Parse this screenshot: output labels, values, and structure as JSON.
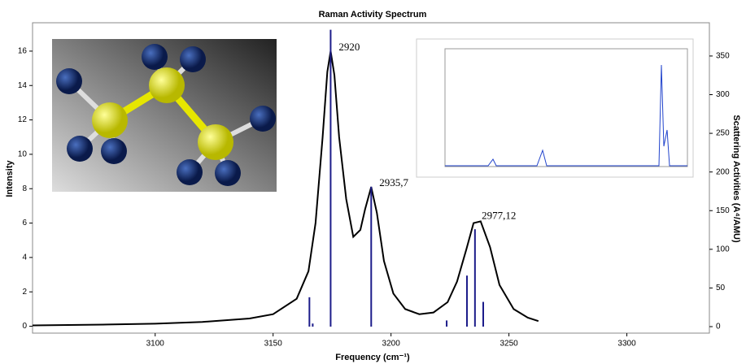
{
  "chart_data": {
    "type": "line",
    "title": "Raman Activity Spectrum",
    "x_label": "Frequency (cm⁻¹)",
    "y_label": "Intensity",
    "y2_label": "Scattering Activities (A⁴/AMU)",
    "xlim": [
      3048,
      3335
    ],
    "xticks": [
      3100,
      3150,
      3200,
      3250,
      3300
    ],
    "ylim": [
      -0.4,
      17.65
    ],
    "yticks": [
      0,
      2,
      4,
      6,
      8,
      10,
      12,
      14,
      16
    ],
    "y2lim": [
      -8.4,
      393
    ],
    "y2ticks": [
      0,
      50,
      100,
      150,
      200,
      250,
      300,
      350
    ],
    "series": [
      {
        "type": "line",
        "color": "#000000",
        "x": [
          3048,
          3080,
          3100,
          3120,
          3140,
          3150,
          3160,
          3165,
          3168,
          3171,
          3173,
          3174.4,
          3176,
          3178,
          3181,
          3184,
          3187,
          3189,
          3191.6,
          3194,
          3197,
          3201,
          3206,
          3212,
          3218,
          3224,
          3228,
          3232,
          3235,
          3238,
          3242,
          3246,
          3252,
          3258,
          3262.5
        ],
        "values": [
          0.05,
          0.1,
          0.15,
          0.25,
          0.45,
          0.7,
          1.6,
          3.2,
          6,
          11,
          14.8,
          16,
          14.6,
          11,
          7.4,
          5.2,
          5.6,
          6.8,
          8.1,
          6.6,
          3.8,
          1.9,
          1.0,
          0.7,
          0.8,
          1.4,
          2.6,
          4.5,
          6.0,
          6.1,
          4.6,
          2.4,
          1.0,
          0.5,
          0.3
        ]
      },
      {
        "type": "stick",
        "axis": "y2",
        "color": "#1c1c8a",
        "x": [
          3165.4,
          3166.8,
          3174.4,
          3191.6,
          3223.6,
          3232.2,
          3235.6,
          3239.1
        ],
        "values": [
          38,
          4,
          384,
          181,
          8,
          66,
          126,
          32
        ]
      }
    ],
    "annotations": [
      {
        "text": "2920",
        "x": 3174.4,
        "y": 16
      },
      {
        "text": "2935,7",
        "x": 3191.6,
        "y": 8.1
      },
      {
        "text": "2977,12",
        "x": 3235,
        "y": 6.2
      }
    ]
  }
}
